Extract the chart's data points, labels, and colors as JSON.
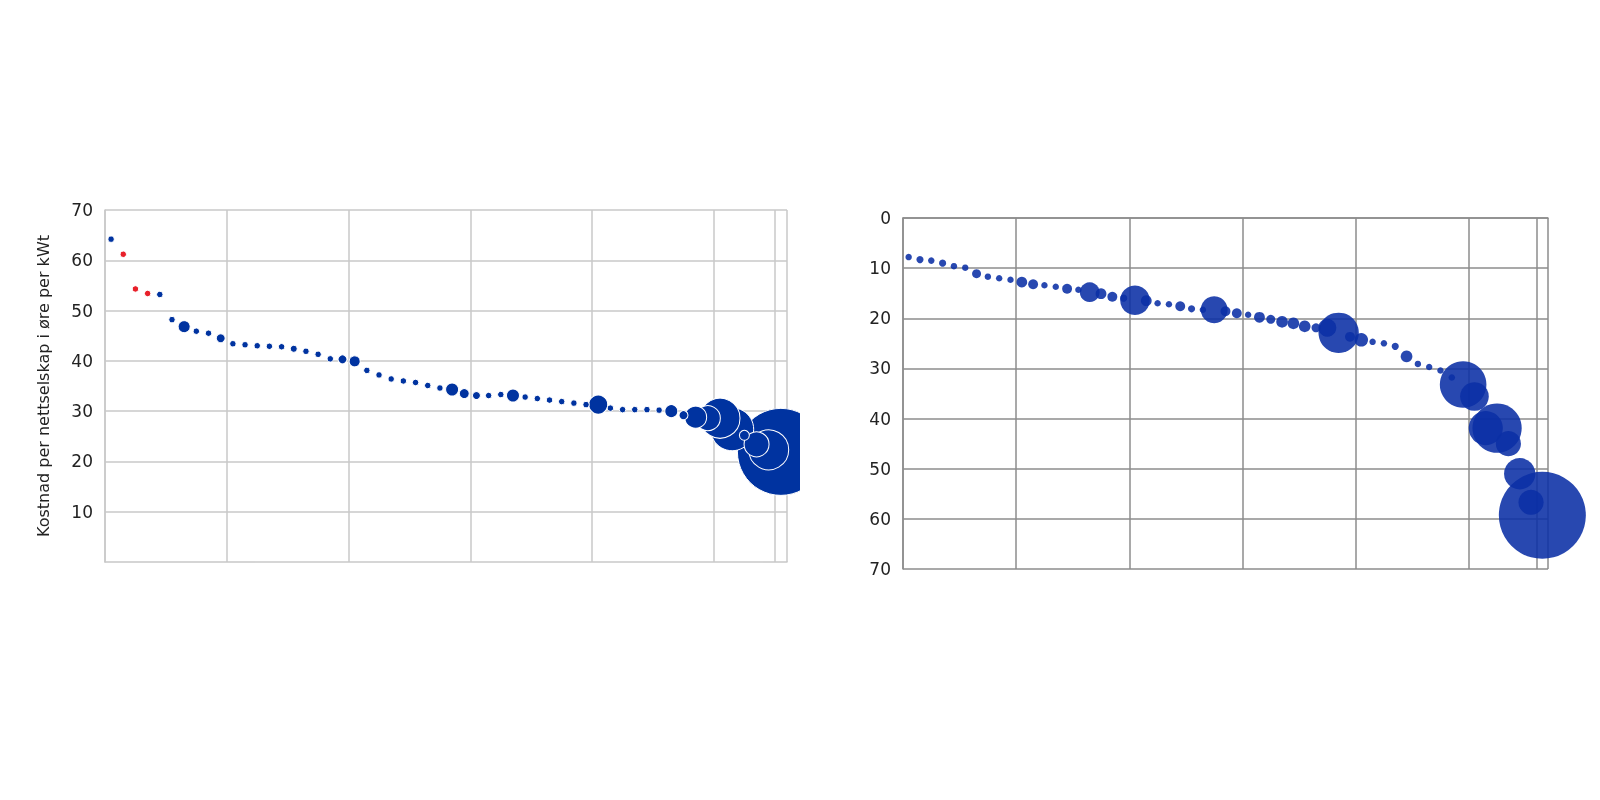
{
  "chart_data": [
    {
      "type": "bubble",
      "ylabel": "Kostnad per nettselskap i øre per kWt",
      "categories": [
        null,
        null,
        null,
        null,
        null,
        null,
        null,
        null,
        null,
        null,
        null,
        null,
        null,
        null,
        null,
        null,
        null,
        null,
        null,
        null,
        null,
        null,
        null,
        null,
        null,
        null,
        null,
        null,
        null,
        null,
        null,
        null,
        null,
        null,
        null,
        null,
        null,
        null,
        null,
        null,
        null,
        null,
        null,
        null,
        null,
        null,
        null,
        null,
        null,
        null,
        null,
        null,
        null,
        null,
        null,
        null
      ],
      "ylim": [
        0,
        70
      ],
      "yticks": [
        10,
        20,
        30,
        40,
        50,
        60,
        70
      ],
      "tick_labels": "y",
      "grid": true,
      "series": [
        {
          "color": "#0033a0",
          "values": [
            64.2,
            null,
            null,
            null,
            53.2,
            48.2,
            46.8,
            45.9,
            45.5,
            44.5,
            43.4,
            43.2,
            43.0,
            42.9,
            42.8,
            42.4,
            41.9,
            41.3,
            40.4,
            40.3,
            39.9,
            38.1,
            37.2,
            36.4,
            36.0,
            35.7,
            35.1,
            34.6,
            34.3,
            33.5,
            33.1,
            33.1,
            33.3,
            33.1,
            32.8,
            32.5,
            32.2,
            31.9,
            31.6,
            31.3,
            31.3,
            30.6,
            30.3,
            30.3,
            30.3,
            30.2,
            30.0,
            29.2,
            28.8,
            28.6,
            28.6,
            26.4,
            25.2,
            23.4,
            22.3,
            21.9
          ],
          "sizes": [
            0.0055,
            null,
            null,
            null,
            0.0055,
            0.0055,
            0.019,
            0.0055,
            0.0055,
            0.0107,
            0.0055,
            0.0055,
            0.0055,
            0.0055,
            0.0055,
            0.0065,
            0.0055,
            0.0055,
            0.0055,
            0.0107,
            0.016,
            0.0055,
            0.0055,
            0.0055,
            0.0055,
            0.0055,
            0.0055,
            0.0055,
            0.0223,
            0.0132,
            0.0085,
            0.0055,
            0.0055,
            0.0223,
            0.0055,
            0.0055,
            0.0055,
            0.0055,
            0.0055,
            0.0055,
            0.0477,
            0.0055,
            0.0055,
            0.0055,
            0.0055,
            0.0055,
            0.0223,
            0.0107,
            0.064,
            0.0826,
            0.211,
            0.244,
            0.0132,
            0.0826,
            0.211,
            1
          ]
        },
        {
          "color": "#e8202a",
          "values": [
            null,
            61.2,
            54.3,
            53.4,
            null,
            null,
            null,
            null,
            null,
            null,
            null,
            null,
            null,
            null,
            null,
            null,
            null,
            null,
            null,
            null,
            null,
            null,
            null,
            null,
            null,
            null,
            null,
            null,
            null,
            null,
            null,
            null,
            null,
            null,
            null,
            null,
            null,
            null,
            null,
            null,
            null,
            null,
            null,
            null,
            null,
            null,
            null,
            null,
            null,
            null,
            null,
            null,
            null,
            null,
            null,
            null
          ],
          "sizes": [
            null,
            0.0055,
            0.0055,
            0.0055,
            null,
            null,
            null,
            null,
            null,
            null,
            null,
            null,
            null,
            null,
            null,
            null,
            null,
            null,
            null,
            null,
            null,
            null,
            null,
            null,
            null,
            null,
            null,
            null,
            null,
            null,
            null,
            null,
            null,
            null,
            null,
            null,
            null,
            null,
            null,
            null,
            null,
            null,
            null,
            null,
            null,
            null,
            null,
            null,
            null,
            null,
            null,
            null,
            null,
            null,
            null,
            null
          ]
        }
      ]
    },
    {
      "type": "bubble",
      "categories": [
        null,
        null,
        null,
        null,
        null,
        null,
        null,
        null,
        null,
        null,
        null,
        null,
        null,
        null,
        null,
        null,
        null,
        null,
        null,
        null,
        null,
        null,
        null,
        null,
        null,
        null,
        null,
        null,
        null,
        null,
        null,
        null,
        null,
        null,
        null,
        null,
        null,
        null,
        null,
        null,
        null,
        null,
        null,
        null,
        null,
        null,
        null,
        null,
        null,
        null,
        null,
        null,
        null,
        null,
        null,
        null,
        null
      ],
      "ylim": [
        70,
        0
      ],
      "yticks": [
        0,
        10,
        20,
        30,
        40,
        50,
        60,
        70
      ],
      "tick_labels": "y",
      "grid": true,
      "series": [
        {
          "color": "#0a2fa5",
          "values": [
            7.8,
            8.3,
            8.5,
            9.0,
            9.6,
            9.9,
            11.1,
            11.7,
            12.0,
            12.3,
            12.8,
            13.2,
            13.4,
            13.7,
            14.1,
            14.3,
            14.8,
            15.1,
            15.7,
            16.0,
            16.4,
            16.5,
            17.0,
            17.2,
            17.6,
            18.1,
            18.3,
            18.3,
            18.6,
            19.0,
            19.3,
            19.8,
            20.2,
            20.7,
            21.0,
            21.6,
            21.9,
            21.9,
            22.9,
            23.7,
            24.3,
            24.7,
            25.0,
            25.6,
            27.6,
            29.1,
            29.7,
            30.4,
            31.8,
            33.2,
            35.6,
            41.9,
            41.9,
            45.0,
            51.0,
            56.7,
            59.3
          ],
          "sizes": [
            0.0055,
            0.0068,
            0.0055,
            0.0068,
            0.0055,
            0.0055,
            0.0106,
            0.0055,
            0.0055,
            0.0055,
            0.0153,
            0.0129,
            0.0055,
            0.0055,
            0.0129,
            0.0055,
            0.0514,
            0.0153,
            0.0129,
            0.0068,
            0.1157,
            0.0153,
            0.0055,
            0.0055,
            0.0129,
            0.0068,
            0.0055,
            0.0957,
            0.0129,
            0.0129,
            0.0055,
            0.0153,
            0.0106,
            0.018,
            0.018,
            0.018,
            0.0106,
            0.0425,
            0.215,
            0.0129,
            0.0239,
            0.0055,
            0.0055,
            0.0068,
            0.018,
            0.0055,
            0.0055,
            0.0055,
            0.0055,
            0.287,
            0.1088,
            0.1535,
            0.321,
            0.0833,
            0.13,
            0.0833,
            1
          ]
        }
      ]
    }
  ]
}
